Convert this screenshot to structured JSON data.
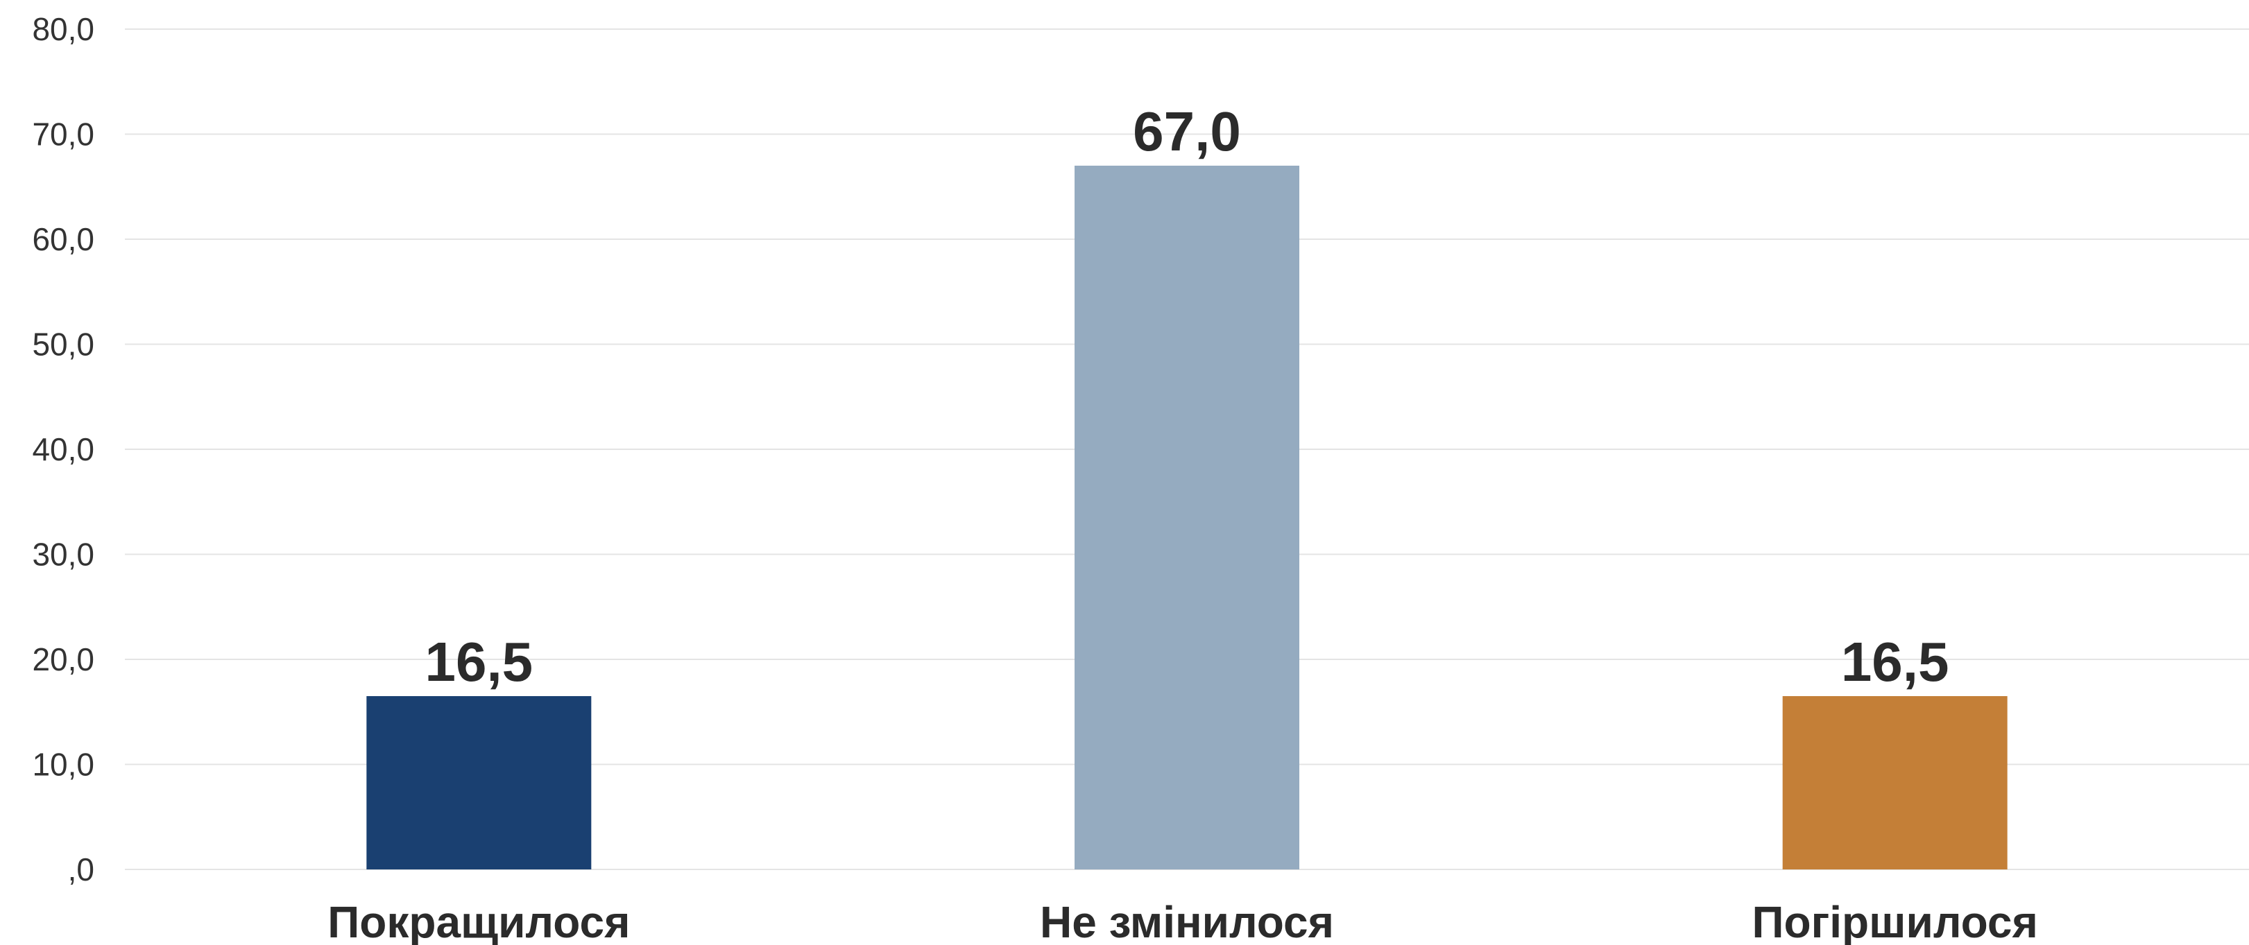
{
  "chart_data": {
    "type": "bar",
    "categories": [
      "Покращилося",
      "Не змінилося",
      "Погіршилося"
    ],
    "values": [
      16.5,
      67.0,
      16.5
    ],
    "value_labels": [
      "16,5",
      "67,0",
      "16,5"
    ],
    "colors": [
      "#1a4071",
      "#95abc0",
      "#c47f37"
    ],
    "ylim": [
      0,
      80
    ],
    "yticks": [
      0,
      10,
      20,
      30,
      40,
      50,
      60,
      70,
      80
    ],
    "ytick_labels": [
      ",0",
      "10,0",
      "20,0",
      "30,0",
      "40,0",
      "50,0",
      "60,0",
      "70,0",
      "80,0"
    ],
    "grid": true,
    "legend": "none"
  }
}
